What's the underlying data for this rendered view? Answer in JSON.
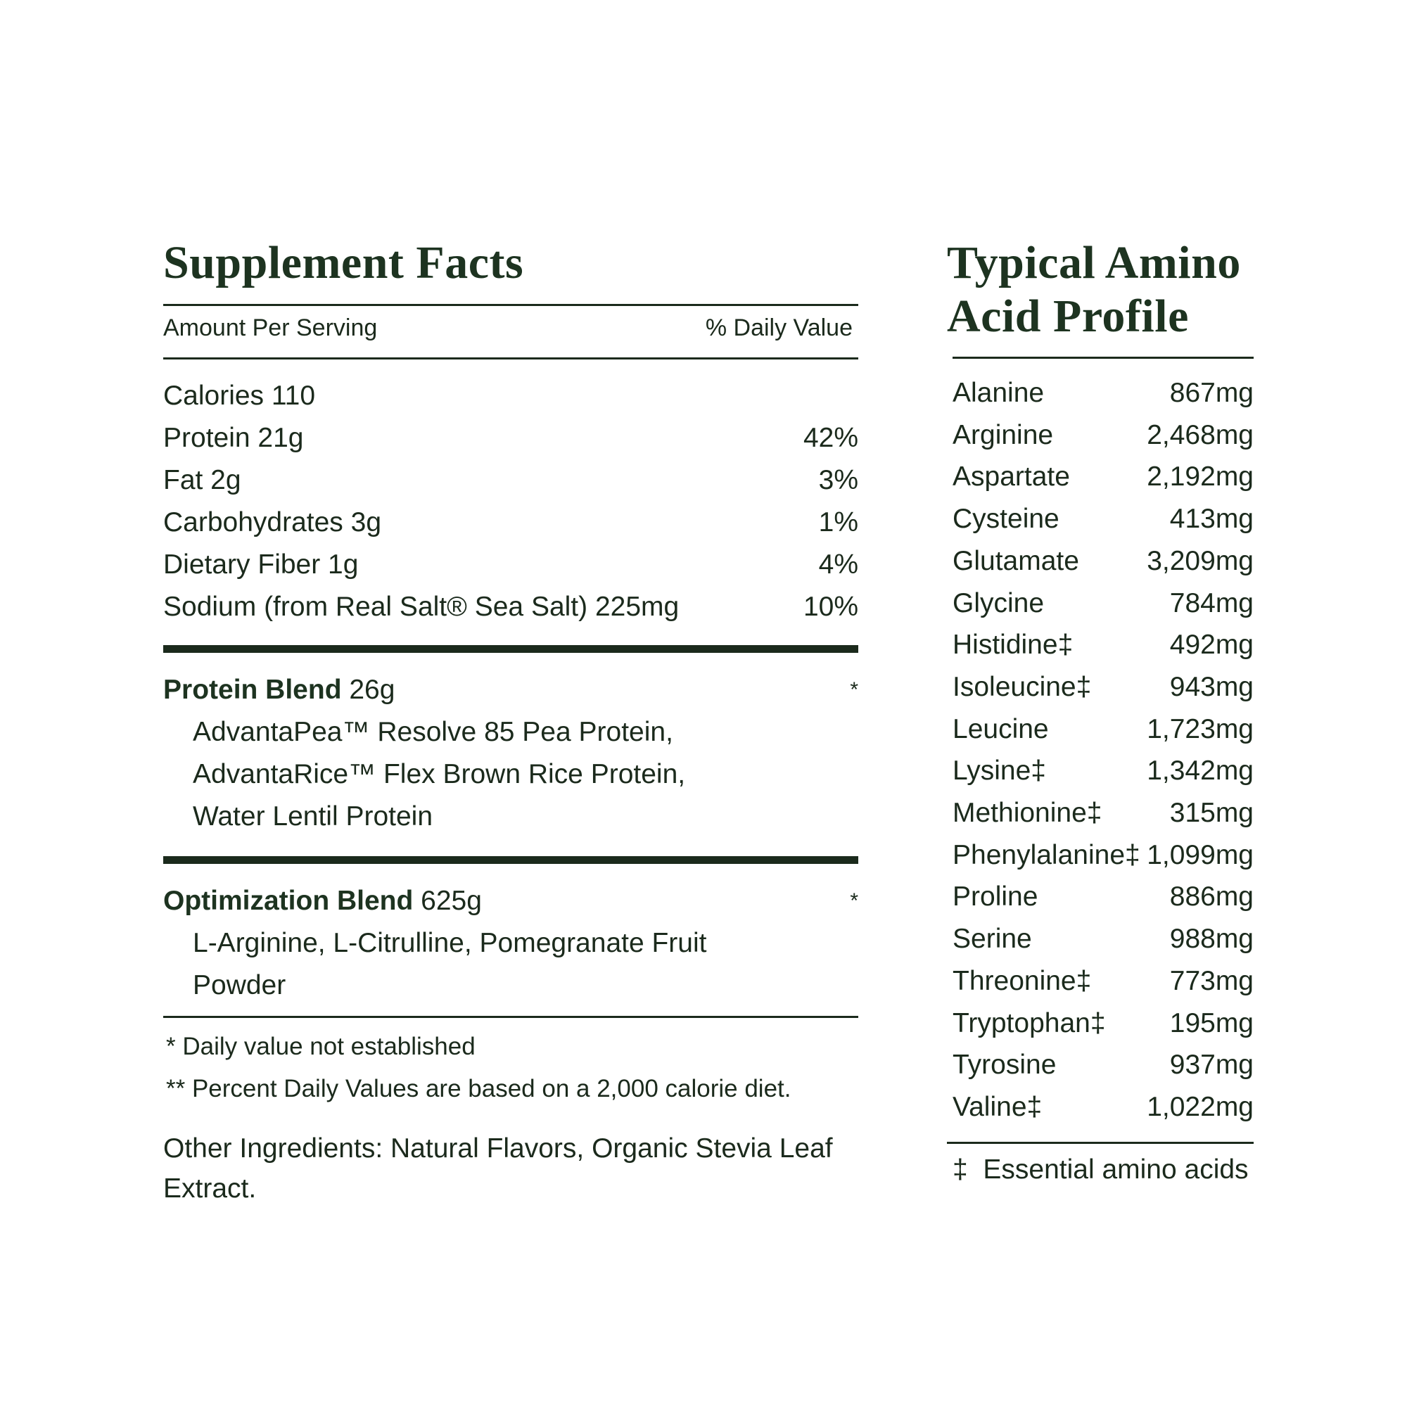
{
  "supplement": {
    "title": "Supplement Facts",
    "amount_header": "Amount Per Serving",
    "dv_header": "% Daily Value",
    "rows": [
      {
        "label": "Calories 110",
        "dv": ""
      },
      {
        "label": "Protein 21g",
        "dv": "42%"
      },
      {
        "label": "Fat 2g",
        "dv": "3%"
      },
      {
        "label": "Carbohydrates 3g",
        "dv": "1%"
      },
      {
        "label": "Dietary Fiber 1g",
        "dv": "4%"
      },
      {
        "label": "Sodium (from Real Salt® Sea Salt) 225mg",
        "dv": "10%"
      }
    ],
    "protein_blend": {
      "name": "Protein Blend",
      "amount": " 26g",
      "dv": "*",
      "lines": [
        "AdvantaPea™ Resolve 85 Pea Protein,",
        "AdvantaRice™ Flex Brown Rice Protein,",
        "Water Lentil Protein"
      ]
    },
    "optimization_blend": {
      "name": "Optimization Blend",
      "amount": " 625g",
      "dv": "*",
      "lines": [
        "L-Arginine, L-Citrulline, Pomegranate Fruit",
        "Powder"
      ]
    },
    "footnotes": [
      "* Daily value not established",
      "** Percent Daily Values are based on a 2,000 calorie diet."
    ],
    "other_ingredients": [
      "Other Ingredients: Natural Flavors, Organic Stevia Leaf",
      "Extract."
    ]
  },
  "amino": {
    "title_lines": [
      "Typical Amino",
      "Acid Profile"
    ],
    "rows": [
      {
        "name": "Alanine",
        "amount": "867mg"
      },
      {
        "name": "Arginine",
        "amount": "2,468mg"
      },
      {
        "name": "Aspartate",
        "amount": "2,192mg"
      },
      {
        "name": "Cysteine",
        "amount": "413mg"
      },
      {
        "name": "Glutamate",
        "amount": "3,209mg"
      },
      {
        "name": "Glycine",
        "amount": "784mg"
      },
      {
        "name": "Histidine‡",
        "amount": "492mg"
      },
      {
        "name": "Isoleucine‡",
        "amount": "943mg"
      },
      {
        "name": "Leucine",
        "amount": "1,723mg"
      },
      {
        "name": "Lysine‡",
        "amount": "1,342mg"
      },
      {
        "name": "Methionine‡",
        "amount": "315mg"
      },
      {
        "name": "Phenylalanine‡",
        "amount": "1,099mg"
      },
      {
        "name": "Proline",
        "amount": "886mg"
      },
      {
        "name": "Serine",
        "amount": "988mg"
      },
      {
        "name": "Threonine‡",
        "amount": "773mg"
      },
      {
        "name": "Tryptophan‡",
        "amount": "195mg"
      },
      {
        "name": "Tyrosine",
        "amount": "937mg"
      },
      {
        "name": "Valine‡",
        "amount": "1,022mg"
      }
    ],
    "footnote": "‡  Essential amino acids"
  },
  "colors": {
    "text": "#1b2a1c",
    "heading": "#1d3320",
    "background": "#ffffff"
  }
}
